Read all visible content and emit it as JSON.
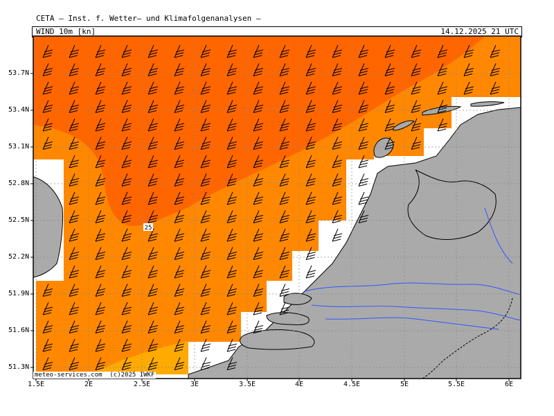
{
  "header": {
    "title": "CETA – Inst. f. Wetter– und Klimafolgenanalysen –",
    "variable": "WIND 10m [kn]",
    "valid_time": "14.12.2025  21 UTC"
  },
  "map": {
    "lat_labels": [
      "53.7N",
      "53.4N",
      "53.1N",
      "52.8N",
      "52.5N",
      "52.2N",
      "51.9N",
      "51.6N",
      "51.3N"
    ],
    "lon_labels": [
      "1.5E",
      "2E",
      "2.5E",
      "3E",
      "3.5E",
      "4E",
      "4.5E",
      "5E",
      "5.5E",
      "6E"
    ],
    "contour_label": "25",
    "colors": {
      "band_high": "#ff6600",
      "band_mid": "#ff8800",
      "band_low": "#ffaa00",
      "land": "#aaaaaa",
      "river": "#3355ff",
      "grid": "#888888"
    }
  },
  "footer": {
    "credit": "meteo-services.com  (c)2025 IWKF"
  }
}
